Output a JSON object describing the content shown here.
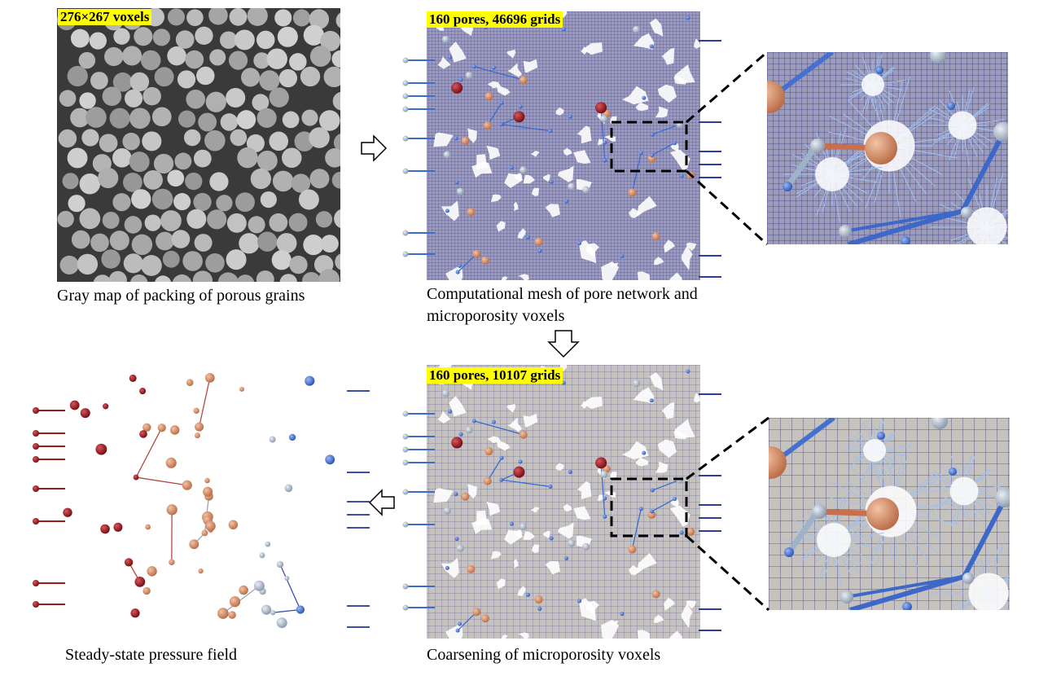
{
  "panels": {
    "gray_map": {
      "badge": "276×267 voxels",
      "caption": "Gray map of packing of porous grains"
    },
    "fine_mesh": {
      "badge": "160 pores, 46696  grids",
      "caption_line1": "Computational mesh of pore network and",
      "caption_line2": "microporosity voxels"
    },
    "coarse_mesh": {
      "badge": "160 pores, 10107 grids",
      "caption": "Coarsening of microporosity voxels"
    },
    "pressure": {
      "caption": "Steady-state pressure field"
    }
  },
  "colors": {
    "highlight": "#ffff00",
    "fine_mesh_fill": "#9a9ab8",
    "coarse_mesh_fill": "#c4c0bc",
    "mesh_line": "#2a2a7a",
    "throat_blue": "#3a6ccf",
    "pore_orange": "#d98a5e",
    "pore_red": "#8b1118",
    "pressure_high": "#9e1a1a",
    "pressure_low": "#3a50a8"
  },
  "icons": [
    "arrow-right-icon",
    "arrow-down-icon",
    "arrow-left-icon",
    "zoom-box-icon"
  ]
}
